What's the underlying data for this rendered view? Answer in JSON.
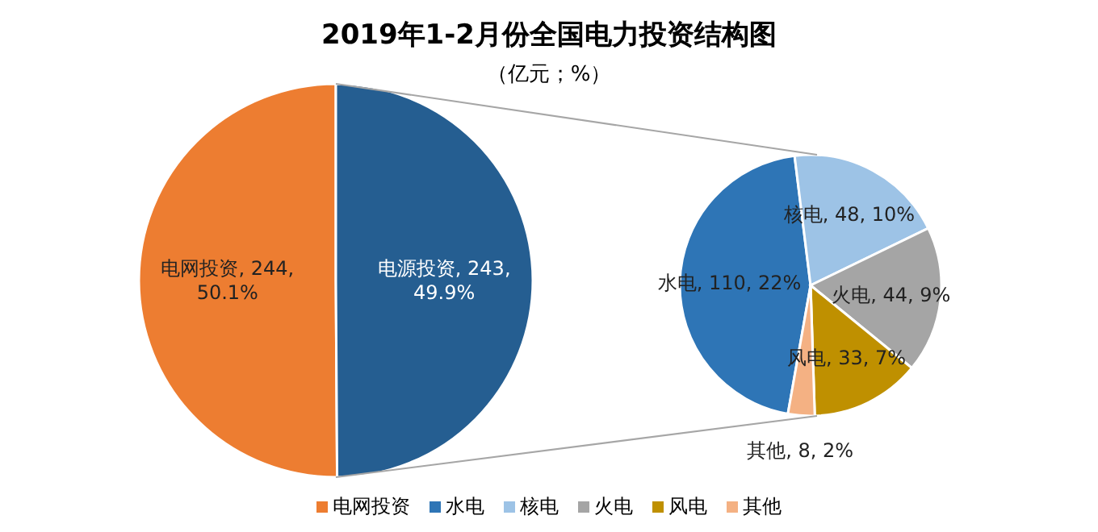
{
  "chart_data": [
    {
      "type": "pie",
      "title": "2019年1-2月份全国电力投资结构图",
      "subtitle": "（亿元；%）",
      "categories": [
        "电网投资",
        "电源投资"
      ],
      "values": [
        244,
        243
      ],
      "colors": [
        "#ed7d31",
        "#255e91"
      ],
      "value_labels": [
        ", 244, 50.1%",
        ", 243, 49.9%"
      ],
      "legend": "bottom"
    },
    {
      "type": "pie",
      "categories": [
        "水电",
        "核电",
        "火电",
        "风电",
        "其他"
      ],
      "values": [
        110,
        48,
        44,
        33,
        8
      ],
      "colors": [
        "#2e75b6",
        "#9dc3e6",
        "#a5a5a5",
        "#bf9000",
        "#f4b183"
      ],
      "value_labels": [
        ", 110, 22%",
        ", 48, 10%",
        ", 44, 9%",
        ", 33, 7%",
        ", 8, 2%"
      ],
      "legend": "bottom"
    }
  ]
}
